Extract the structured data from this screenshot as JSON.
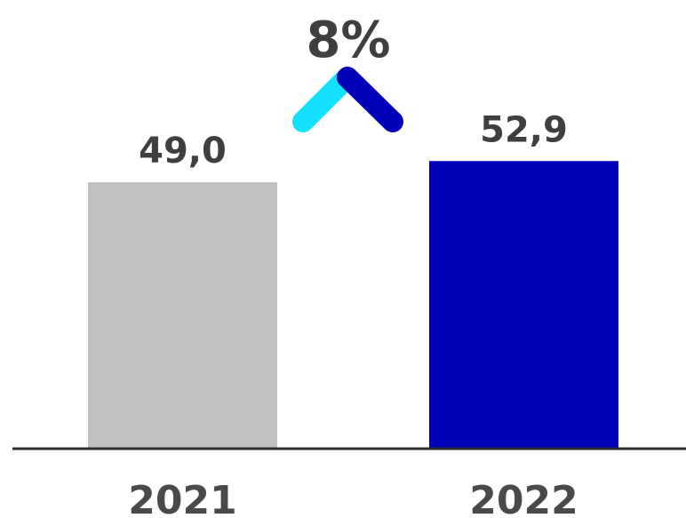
{
  "chart_data": {
    "type": "bar",
    "categories": [
      "2021",
      "2022"
    ],
    "values": [
      49.0,
      52.9
    ],
    "value_labels": [
      "49,0",
      "52,9"
    ],
    "bar_colors": [
      "#c0c0c0",
      "#0000b8"
    ],
    "ylim": [
      0,
      100
    ],
    "grid": false,
    "legend": "none",
    "xlabel": "",
    "ylabel": "",
    "annotation": {
      "text": "8%",
      "icon": "chevron-up-icon",
      "icon_colors": [
        "#14e0ff",
        "#0000b8"
      ]
    }
  }
}
